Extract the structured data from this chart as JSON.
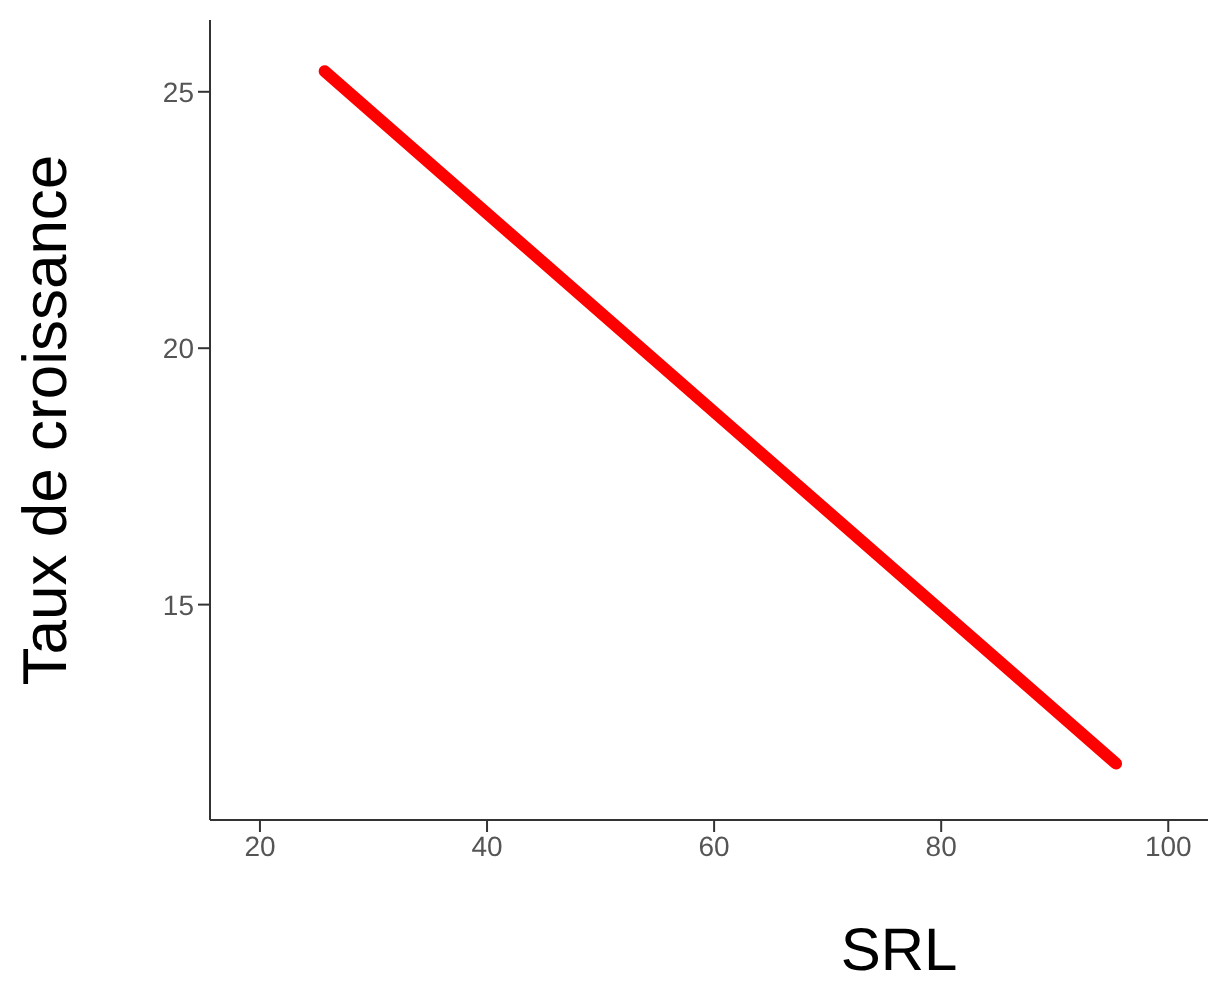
{
  "chart_data": {
    "type": "line",
    "xlabel": "SRL",
    "ylabel": "Taux de croissance",
    "x": [
      25.7,
      95.4
    ],
    "series": [
      {
        "color": "#ff0000",
        "values": [
          25.4,
          11.9
        ]
      }
    ],
    "xlim": [
      15.6,
      103.5
    ],
    "xticks": [
      20,
      40,
      60,
      80,
      100
    ],
    "ylim": [
      10.8,
      26.4
    ],
    "yticks": [
      15,
      20,
      25
    ],
    "grid": false,
    "legend": false,
    "marker": "none",
    "line_style": "solid"
  }
}
